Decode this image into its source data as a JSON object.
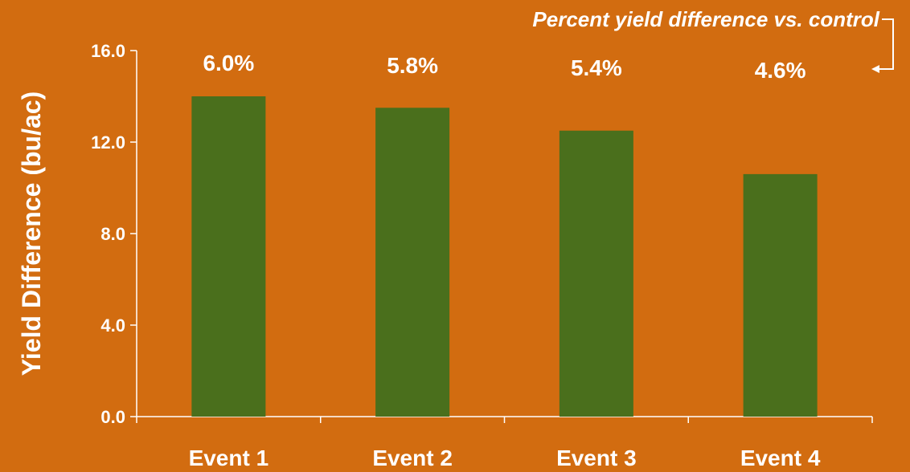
{
  "chart_data": {
    "type": "bar",
    "title": "",
    "annotation": "Percent yield difference vs. control",
    "ylabel": "Yield Difference (bu/ac)",
    "xlabel": "",
    "categories": [
      "Event 1",
      "Event 2",
      "Event 3",
      "Event 4"
    ],
    "values": [
      14.0,
      13.5,
      12.5,
      10.6
    ],
    "percent_labels": [
      "6.0%",
      "5.8%",
      "5.4%",
      "4.6%"
    ],
    "ylim": [
      0,
      16
    ],
    "yticks": [
      0,
      4,
      8,
      12,
      16
    ],
    "ytick_labels": [
      "0.0",
      "4.0",
      "8.0",
      "12.0",
      "16.0"
    ],
    "grid": false,
    "legend": "none",
    "colors": {
      "background": "#D26C10",
      "bar": "#4A6F1C",
      "text": "#FFFFFF",
      "axis": "#FFFFFF"
    }
  }
}
